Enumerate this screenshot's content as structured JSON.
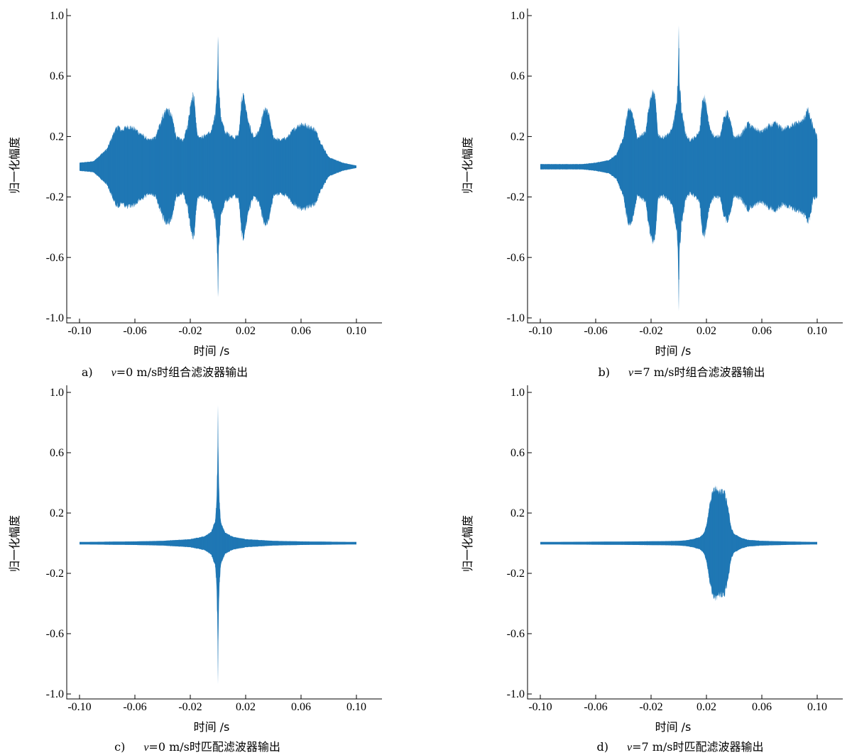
{
  "chart_data": [
    {
      "id": "a",
      "type": "area",
      "caption_prefix": "a)",
      "caption_var": "v",
      "caption_rest": "=0 m/s时组合滤波器输出",
      "xlabel": "时间 /s",
      "ylabel": "归一化幅度",
      "xlim": [
        -0.11,
        0.11
      ],
      "ylim": [
        -1.0,
        1.0
      ],
      "xticks": [
        -0.1,
        -0.06,
        -0.02,
        0.02,
        0.06,
        0.1
      ],
      "xtick_labels": [
        "-0.10",
        "-0.06",
        "-0.02",
        "0.02",
        "0.06",
        "0.10"
      ],
      "yticks": [
        1.0,
        0.6,
        0.2,
        -0.2,
        -0.6,
        -1.0
      ],
      "ytick_labels": [
        "1.0",
        "0.6",
        "0.2",
        "-0.2",
        "-0.6",
        "-1.0"
      ],
      "color": "#1f77b4",
      "envelope": {
        "x": [
          -0.1,
          -0.09,
          -0.08,
          -0.075,
          -0.072,
          -0.07,
          -0.065,
          -0.06,
          -0.05,
          -0.045,
          -0.04,
          -0.037,
          -0.035,
          -0.033,
          -0.03,
          -0.025,
          -0.022,
          -0.019,
          -0.018,
          -0.017,
          -0.015,
          -0.012,
          -0.005,
          -0.002,
          -0.0005,
          0,
          0.0005,
          0.002,
          0.005,
          0.012,
          0.015,
          0.017,
          0.018,
          0.019,
          0.022,
          0.026,
          0.03,
          0.033,
          0.035,
          0.037,
          0.04,
          0.045,
          0.05,
          0.055,
          0.06,
          0.065,
          0.07,
          0.075,
          0.08,
          0.09,
          0.1
        ],
        "upper": [
          0.02,
          0.03,
          0.12,
          0.24,
          0.28,
          0.25,
          0.28,
          0.26,
          0.18,
          0.2,
          0.35,
          0.4,
          0.38,
          0.34,
          0.2,
          0.18,
          0.28,
          0.48,
          0.5,
          0.46,
          0.22,
          0.2,
          0.24,
          0.35,
          0.6,
          0.98,
          0.6,
          0.35,
          0.24,
          0.2,
          0.22,
          0.46,
          0.5,
          0.48,
          0.3,
          0.2,
          0.25,
          0.38,
          0.4,
          0.35,
          0.2,
          0.18,
          0.2,
          0.26,
          0.3,
          0.28,
          0.26,
          0.15,
          0.06,
          0.02,
          0.0
        ],
        "lower": [
          -0.02,
          -0.03,
          -0.12,
          -0.24,
          -0.28,
          -0.25,
          -0.28,
          -0.26,
          -0.18,
          -0.2,
          -0.35,
          -0.4,
          -0.38,
          -0.34,
          -0.2,
          -0.18,
          -0.28,
          -0.48,
          -0.5,
          -0.46,
          -0.22,
          -0.2,
          -0.24,
          -0.35,
          -0.6,
          -0.98,
          -0.6,
          -0.35,
          -0.24,
          -0.2,
          -0.22,
          -0.46,
          -0.5,
          -0.48,
          -0.3,
          -0.2,
          -0.25,
          -0.38,
          -0.4,
          -0.35,
          -0.2,
          -0.18,
          -0.2,
          -0.26,
          -0.3,
          -0.28,
          -0.26,
          -0.15,
          -0.06,
          -0.02,
          0.0
        ]
      }
    },
    {
      "id": "b",
      "type": "area",
      "caption_prefix": "b)",
      "caption_var": "v",
      "caption_rest": "=7 m/s时组合滤波器输出",
      "xlabel": "时间 /s",
      "ylabel": "归一化幅度",
      "xlim": [
        -0.11,
        0.11
      ],
      "ylim": [
        -1.0,
        1.0
      ],
      "xticks": [
        -0.1,
        -0.06,
        -0.02,
        0.02,
        0.06,
        0.1
      ],
      "xtick_labels": [
        "-0.10",
        "-0.06",
        "-0.02",
        "0.02",
        "0.06",
        "0.10"
      ],
      "yticks": [
        1.0,
        0.6,
        0.2,
        -0.2,
        -0.6,
        -1.0
      ],
      "ytick_labels": [
        "1.0",
        "0.6",
        "0.2",
        "-0.2",
        "-0.6",
        "-1.0"
      ],
      "color": "#1f77b4",
      "envelope": {
        "x": [
          -0.1,
          -0.09,
          -0.08,
          -0.07,
          -0.06,
          -0.05,
          -0.045,
          -0.04,
          -0.037,
          -0.035,
          -0.033,
          -0.03,
          -0.027,
          -0.024,
          -0.021,
          -0.019,
          -0.017,
          -0.015,
          -0.012,
          -0.008,
          -0.005,
          -0.002,
          -0.0005,
          0,
          0.0005,
          0.002,
          0.005,
          0.008,
          0.012,
          0.015,
          0.017,
          0.019,
          0.022,
          0.026,
          0.03,
          0.033,
          0.035,
          0.037,
          0.04,
          0.045,
          0.05,
          0.055,
          0.06,
          0.065,
          0.07,
          0.075,
          0.08,
          0.085,
          0.09,
          0.093,
          0.095,
          0.097,
          0.1
        ],
        "upper": [
          0.01,
          0.01,
          0.01,
          0.01,
          0.02,
          0.04,
          0.08,
          0.2,
          0.38,
          0.4,
          0.35,
          0.2,
          0.22,
          0.24,
          0.45,
          0.52,
          0.48,
          0.22,
          0.2,
          0.22,
          0.25,
          0.4,
          0.6,
          0.98,
          0.6,
          0.4,
          0.22,
          0.18,
          0.2,
          0.24,
          0.45,
          0.48,
          0.28,
          0.2,
          0.22,
          0.35,
          0.38,
          0.32,
          0.2,
          0.22,
          0.3,
          0.26,
          0.24,
          0.28,
          0.3,
          0.26,
          0.28,
          0.3,
          0.32,
          0.4,
          0.34,
          0.28,
          0.2
        ],
        "lower": [
          -0.01,
          -0.01,
          -0.01,
          -0.01,
          -0.02,
          -0.04,
          -0.08,
          -0.2,
          -0.38,
          -0.4,
          -0.35,
          -0.2,
          -0.22,
          -0.24,
          -0.45,
          -0.52,
          -0.48,
          -0.22,
          -0.2,
          -0.22,
          -0.25,
          -0.4,
          -0.6,
          -1.0,
          -0.6,
          -0.4,
          -0.22,
          -0.18,
          -0.2,
          -0.24,
          -0.45,
          -0.48,
          -0.28,
          -0.2,
          -0.22,
          -0.35,
          -0.38,
          -0.32,
          -0.2,
          -0.22,
          -0.3,
          -0.26,
          -0.24,
          -0.28,
          -0.3,
          -0.26,
          -0.28,
          -0.3,
          -0.32,
          -0.38,
          -0.34,
          -0.22,
          -0.2
        ]
      }
    },
    {
      "id": "c",
      "type": "area",
      "caption_prefix": "c)",
      "caption_var": "v",
      "caption_rest": "=0 m/s时匹配滤波器输出",
      "xlabel": "时间 /s",
      "ylabel": "归一化幅度",
      "xlim": [
        -0.11,
        0.11
      ],
      "ylim": [
        -1.0,
        1.0
      ],
      "xticks": [
        -0.1,
        -0.06,
        -0.02,
        0.02,
        0.06,
        0.1
      ],
      "xtick_labels": [
        "-0.10",
        "-0.06",
        "-0.02",
        "0.02",
        "0.06",
        "0.10"
      ],
      "yticks": [
        1.0,
        0.6,
        0.2,
        -0.2,
        -0.6,
        -1.0
      ],
      "ytick_labels": [
        "1.0",
        "0.6",
        "0.2",
        "-0.2",
        "-0.6",
        "-1.0"
      ],
      "color": "#1f77b4",
      "envelope": {
        "x": [
          -0.1,
          -0.06,
          -0.04,
          -0.02,
          -0.01,
          -0.005,
          -0.002,
          -0.001,
          -0.0003,
          0,
          0.0003,
          0.001,
          0.002,
          0.005,
          0.01,
          0.02,
          0.04,
          0.06,
          0.1
        ],
        "upper": [
          0.0,
          0.004,
          0.008,
          0.02,
          0.04,
          0.07,
          0.15,
          0.3,
          0.6,
          0.98,
          0.6,
          0.3,
          0.15,
          0.07,
          0.04,
          0.02,
          0.008,
          0.004,
          0.0
        ],
        "lower": [
          0.0,
          -0.004,
          -0.008,
          -0.02,
          -0.04,
          -0.07,
          -0.15,
          -0.3,
          -0.6,
          -1.0,
          -0.6,
          -0.3,
          -0.15,
          -0.07,
          -0.04,
          -0.02,
          -0.008,
          -0.004,
          0.0
        ]
      }
    },
    {
      "id": "d",
      "type": "area",
      "caption_prefix": "d)",
      "caption_var": "v",
      "caption_rest": "=7 m/s时匹配滤波器输出",
      "xlabel": "时间 /s",
      "ylabel": "归一化幅度",
      "xlim": [
        -0.11,
        0.11
      ],
      "ylim": [
        -1.0,
        1.0
      ],
      "xticks": [
        -0.1,
        -0.06,
        -0.02,
        0.02,
        0.06,
        0.1
      ],
      "xtick_labels": [
        "-0.10",
        "-0.06",
        "-0.02",
        "0.02",
        "0.06",
        "0.10"
      ],
      "yticks": [
        1.0,
        0.6,
        0.2,
        -0.2,
        -0.6,
        -1.0
      ],
      "ytick_labels": [
        "1.0",
        "0.6",
        "0.2",
        "-0.2",
        "-0.6",
        "-1.0"
      ],
      "color": "#1f77b4",
      "envelope": {
        "x": [
          -0.1,
          -0.06,
          -0.03,
          -0.01,
          0.0,
          0.005,
          0.01,
          0.015,
          0.018,
          0.02,
          0.023,
          0.025,
          0.027,
          0.029,
          0.031,
          0.033,
          0.035,
          0.038,
          0.04,
          0.045,
          0.05,
          0.06,
          0.08,
          0.1
        ],
        "upper": [
          0.0,
          0.002,
          0.004,
          0.006,
          0.008,
          0.012,
          0.02,
          0.035,
          0.06,
          0.12,
          0.3,
          0.37,
          0.38,
          0.35,
          0.37,
          0.36,
          0.28,
          0.1,
          0.06,
          0.03,
          0.015,
          0.008,
          0.003,
          0.0
        ],
        "lower": [
          0.0,
          -0.002,
          -0.004,
          -0.006,
          -0.008,
          -0.012,
          -0.02,
          -0.035,
          -0.06,
          -0.12,
          -0.3,
          -0.37,
          -0.38,
          -0.35,
          -0.37,
          -0.36,
          -0.28,
          -0.1,
          -0.06,
          -0.03,
          -0.015,
          -0.008,
          -0.003,
          0.0
        ]
      }
    }
  ]
}
